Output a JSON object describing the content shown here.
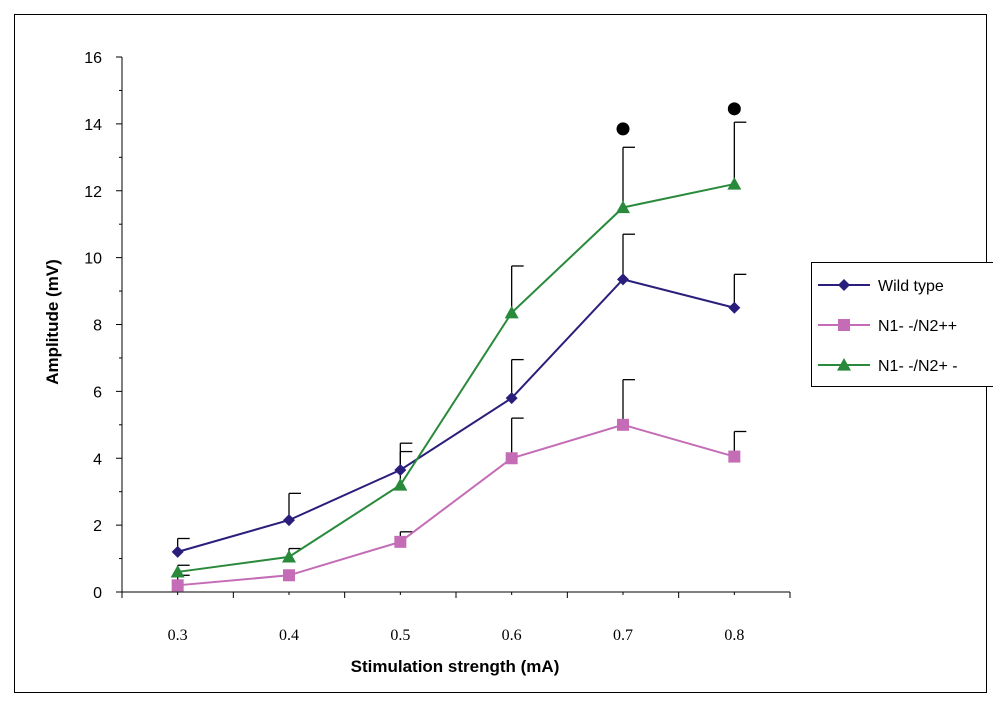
{
  "chart_data": {
    "type": "line",
    "title": "",
    "xlabel": "Stimulation strength (mA)",
    "ylabel": "Amplitude (mV)",
    "categories": [
      "0.3",
      "0.4",
      "0.5",
      "0.6",
      "0.7",
      "0.8"
    ],
    "ylim": [
      0,
      16
    ],
    "yticks": [
      "0",
      "2",
      "4",
      "6",
      "8",
      "10",
      "12",
      "14",
      "16"
    ],
    "grid": false,
    "legend_position": "right",
    "series": [
      {
        "name": "Wild type",
        "color": "#2a1e7c",
        "marker": "diamond",
        "values": [
          1.2,
          2.15,
          3.65,
          5.8,
          9.35,
          8.5
        ],
        "error": [
          0.4,
          0.8,
          0.8,
          1.15,
          1.35,
          1.0
        ]
      },
      {
        "name": "N1- -/N2++",
        "color": "#c46db6",
        "marker": "square",
        "values": [
          0.2,
          0.5,
          1.5,
          4.0,
          5.0,
          4.05
        ],
        "error": [
          0.3,
          0.0,
          0.3,
          1.2,
          1.35,
          0.75
        ]
      },
      {
        "name": "N1- -/N2+ -",
        "color": "#2a8a3c",
        "marker": "triangle",
        "values": [
          0.6,
          1.05,
          3.2,
          8.35,
          11.5,
          12.2
        ],
        "error": [
          0.2,
          0.25,
          1.0,
          1.4,
          1.8,
          1.85
        ]
      }
    ],
    "significance_markers": [
      {
        "category": "0.7",
        "y": 13.85
      },
      {
        "category": "0.8",
        "y": 14.45
      }
    ]
  }
}
